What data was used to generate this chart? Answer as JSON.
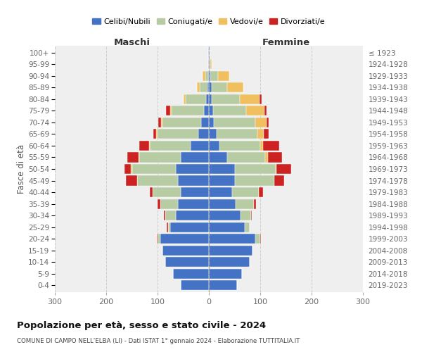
{
  "age_groups": [
    "0-4",
    "5-9",
    "10-14",
    "15-19",
    "20-24",
    "25-29",
    "30-34",
    "35-39",
    "40-44",
    "45-49",
    "50-54",
    "55-59",
    "60-64",
    "65-69",
    "70-74",
    "75-79",
    "80-84",
    "85-89",
    "90-94",
    "95-99",
    "100+"
  ],
  "birth_years": [
    "2019-2023",
    "2014-2018",
    "2009-2013",
    "2004-2008",
    "1999-2003",
    "1994-1998",
    "1989-1993",
    "1984-1988",
    "1979-1983",
    "1974-1978",
    "1969-1973",
    "1964-1968",
    "1959-1963",
    "1954-1958",
    "1949-1953",
    "1944-1948",
    "1939-1943",
    "1934-1938",
    "1929-1933",
    "1924-1928",
    "≤ 1923"
  ],
  "colors": {
    "celibi": "#4472c4",
    "coniugati": "#b8cca4",
    "vedovi": "#f0c060",
    "divorziati": "#cc2222"
  },
  "maschi": {
    "celibi": [
      55,
      70,
      85,
      90,
      95,
      75,
      65,
      60,
      55,
      60,
      65,
      55,
      35,
      20,
      15,
      10,
      5,
      3,
      2,
      1,
      1
    ],
    "coniugati": [
      0,
      0,
      0,
      0,
      5,
      5,
      20,
      35,
      55,
      80,
      85,
      80,
      80,
      80,
      75,
      62,
      40,
      15,
      5,
      0,
      0
    ],
    "vedovi": [
      0,
      0,
      0,
      0,
      0,
      0,
      0,
      0,
      0,
      0,
      2,
      2,
      2,
      3,
      3,
      3,
      5,
      5,
      5,
      0,
      0
    ],
    "divorziati": [
      0,
      0,
      0,
      0,
      2,
      2,
      2,
      5,
      5,
      22,
      12,
      22,
      18,
      5,
      5,
      8,
      0,
      0,
      0,
      0,
      0
    ]
  },
  "femmine": {
    "celibi": [
      55,
      65,
      80,
      85,
      90,
      70,
      62,
      52,
      45,
      50,
      50,
      35,
      20,
      15,
      10,
      8,
      5,
      5,
      3,
      1,
      1
    ],
    "coniugati": [
      0,
      0,
      0,
      0,
      10,
      10,
      20,
      35,
      52,
      78,
      80,
      75,
      80,
      80,
      80,
      65,
      55,
      30,
      15,
      2,
      0
    ],
    "vedovi": [
      0,
      0,
      0,
      0,
      0,
      0,
      0,
      0,
      0,
      0,
      2,
      5,
      5,
      12,
      22,
      35,
      38,
      32,
      22,
      2,
      1
    ],
    "divorziati": [
      0,
      0,
      0,
      0,
      2,
      0,
      2,
      5,
      8,
      18,
      28,
      28,
      32,
      10,
      5,
      5,
      5,
      0,
      0,
      0,
      0
    ]
  },
  "title": "Popolazione per età, sesso e stato civile - 2024",
  "subtitle": "COMUNE DI CAMPO NELL'ELBA (LI) - Dati ISTAT 1° gennaio 2024 - Elaborazione TUTTITALIA.IT",
  "xlabel_left": "Maschi",
  "xlabel_right": "Femmine",
  "ylabel_left": "Fasce di età",
  "xlim": 300,
  "legend_labels": [
    "Celibi/Nubili",
    "Coniugati/e",
    "Vedovi/e",
    "Divorziati/e"
  ],
  "background_color": "#ffffff",
  "plot_bg_color": "#efefef",
  "grid_color": "#cccccc"
}
